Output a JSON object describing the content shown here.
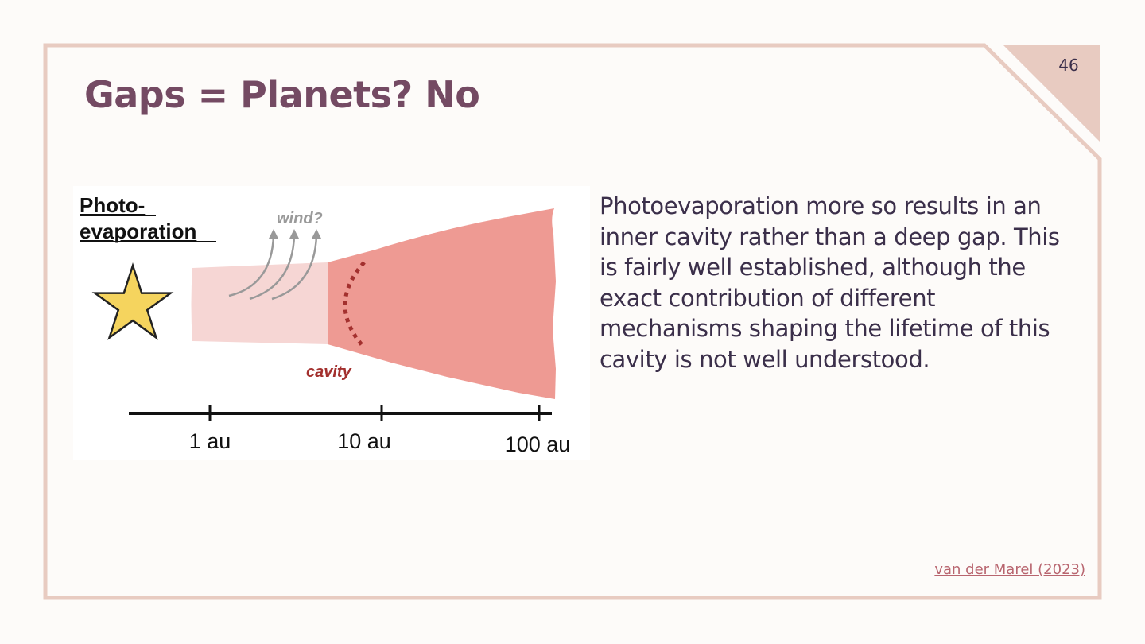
{
  "slide": {
    "page_number": "46",
    "title": "Gaps = Planets? No",
    "body_text": "Photoevaporation more so results in an inner cavity rather than a deep gap. This is fairly well established, although the exact contribution of different mechanisms shaping the lifetime of this cavity is not well understood.",
    "citation": "van der Marel (2023)"
  },
  "figure": {
    "heading_line1": "Photo-",
    "heading_line2": "evaporation",
    "wind_label": "wind?",
    "cavity_label": "cavity",
    "axis_ticks": [
      "1 au",
      "10 au",
      "100 au"
    ]
  },
  "colors": {
    "background": "#fdfbf9",
    "frame": "#e8cbc1",
    "title": "#744a63",
    "body_text": "#3b2f4a",
    "citation": "#b8656f",
    "inner_disk": "#f6d6d4",
    "outer_disk": "#ee9a93",
    "cavity_edge": "#a3302e",
    "cavity_label": "#a3302e",
    "star_fill": "#f5d45e"
  }
}
